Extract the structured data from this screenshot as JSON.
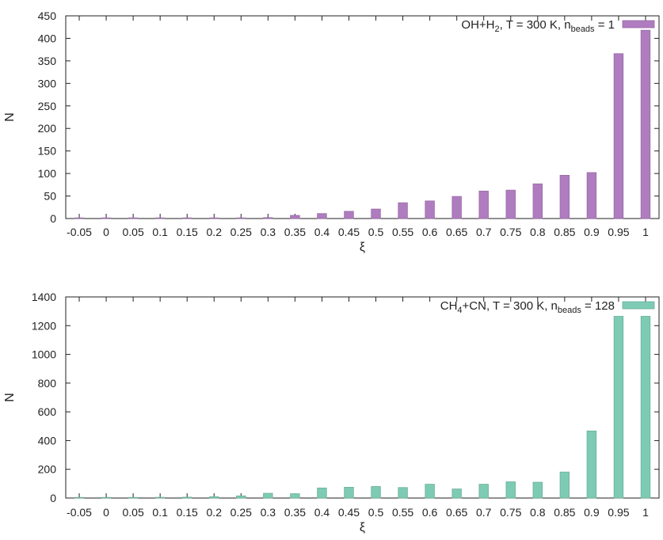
{
  "chart_data": [
    {
      "type": "bar",
      "categories": [
        "-0.05",
        "0",
        "0.05",
        "0.1",
        "0.15",
        "0.2",
        "0.25",
        "0.3",
        "0.35",
        "0.4",
        "0.45",
        "0.5",
        "0.55",
        "0.6",
        "0.65",
        "0.7",
        "0.75",
        "0.8",
        "0.85",
        "0.9",
        "0.95",
        "1"
      ],
      "series": [
        {
          "name_parts": [
            "OH+H",
            "2",
            ", T = 300 K, n",
            "beads",
            " = 1"
          ],
          "color": "#b07cc0",
          "values": [
            0,
            0,
            0,
            0,
            0,
            0,
            0,
            2,
            7,
            11,
            16,
            21,
            35,
            39,
            49,
            61,
            63,
            77,
            96,
            102,
            366,
            418
          ]
        }
      ],
      "xlabel": "ξ",
      "ylabel": "N",
      "ylim": [
        0,
        450
      ],
      "yticks": [
        "0",
        "50",
        "100",
        "150",
        "200",
        "250",
        "300",
        "350",
        "400",
        "450"
      ],
      "legend": "top-right",
      "grid": false
    },
    {
      "type": "bar",
      "categories": [
        "-0.05",
        "0",
        "0.05",
        "0.1",
        "0.15",
        "0.2",
        "0.25",
        "0.3",
        "0.35",
        "0.4",
        "0.45",
        "0.5",
        "0.55",
        "0.6",
        "0.65",
        "0.7",
        "0.75",
        "0.8",
        "0.85",
        "0.9",
        "0.95",
        "1"
      ],
      "series": [
        {
          "name_parts": [
            "CH",
            "4",
            "+CN, T = 300 K, n",
            "beads",
            " = 128"
          ],
          "color": "#7ecbb4",
          "values": [
            0,
            2,
            3,
            5,
            6,
            9,
            15,
            33,
            30,
            70,
            75,
            80,
            73,
            96,
            63,
            96,
            113,
            110,
            181,
            467,
            1265,
            1265
          ]
        }
      ],
      "xlabel": "ξ",
      "ylabel": "N",
      "ylim": [
        0,
        1400
      ],
      "yticks": [
        "0",
        "200",
        "400",
        "600",
        "800",
        "1000",
        "1200",
        "1400"
      ],
      "legend": "top-right",
      "grid": false
    }
  ]
}
